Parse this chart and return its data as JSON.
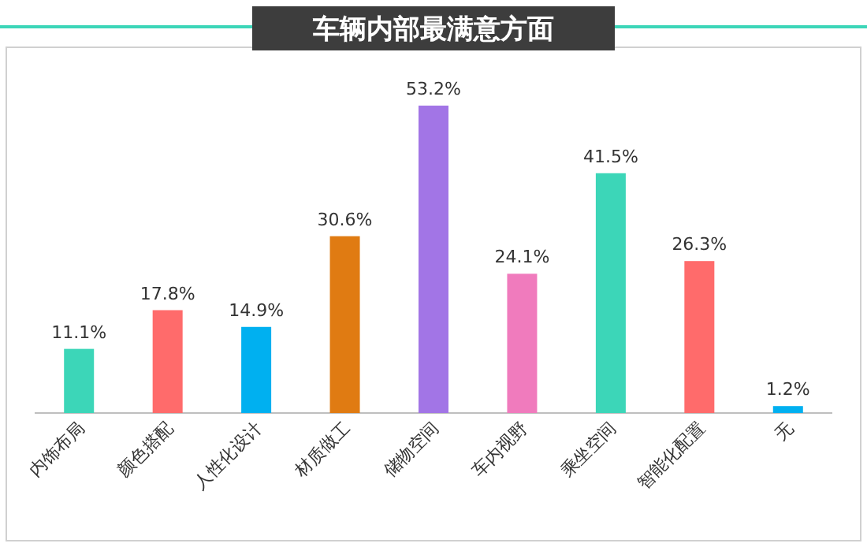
{
  "chart_data": {
    "type": "bar",
    "title": "车辆内部最满意方面",
    "categories": [
      "内饰布局",
      "颜色搭配",
      "人性化设计",
      "材质做工",
      "储物空间",
      "车内视野",
      "乘坐空间",
      "智能化配置",
      "无"
    ],
    "values": [
      11.1,
      17.8,
      14.9,
      30.6,
      53.2,
      24.1,
      41.5,
      26.3,
      1.2
    ],
    "colors": [
      "#3cd6b8",
      "#ff6b6b",
      "#00b0f0",
      "#e07b12",
      "#a275e6",
      "#f07bbd",
      "#3cd6b8",
      "#ff6b6b",
      "#00b0f0"
    ],
    "value_labels": [
      "11.1%",
      "17.8%",
      "14.9%",
      "30.6%",
      "53.2%",
      "24.1%",
      "41.5%",
      "26.3%",
      "1.2%"
    ]
  }
}
